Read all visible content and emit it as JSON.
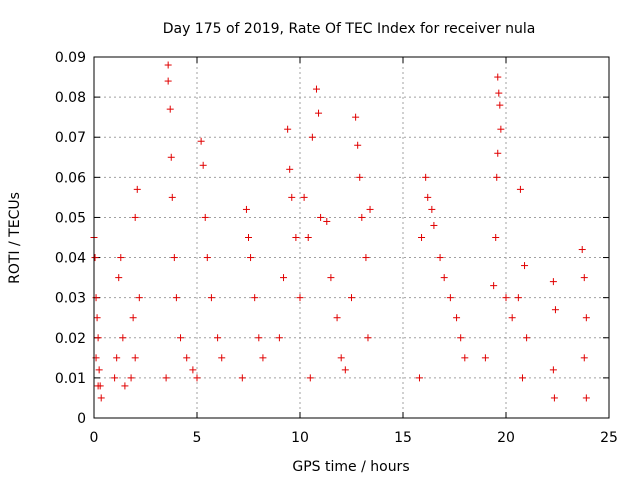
{
  "chart_data": {
    "type": "scatter",
    "title": "Day 175 of 2019, Rate Of TEC Index for receiver nula",
    "xlabel": "GPS time / hours",
    "ylabel": "ROTI / TECUs",
    "xlim": [
      0,
      25
    ],
    "ylim": [
      0,
      0.09
    ],
    "x_ticks": [
      "0",
      "5",
      "10",
      "15",
      "20",
      "25"
    ],
    "y_ticks": [
      "0",
      "0.01",
      "0.02",
      "0.03",
      "0.04",
      "0.05",
      "0.06",
      "0.07",
      "0.08",
      "0.09"
    ],
    "x_tick_values": [
      0,
      5,
      10,
      15,
      20,
      25
    ],
    "y_tick_values": [
      0,
      0.01,
      0.02,
      0.03,
      0.04,
      0.05,
      0.06,
      0.07,
      0.08,
      0.09
    ],
    "grid": true,
    "marker": "+",
    "color": "#e00000",
    "series": [
      {
        "points": [
          [
            0.0,
            0.045
          ],
          [
            0.05,
            0.04
          ],
          [
            0.1,
            0.03
          ],
          [
            0.15,
            0.025
          ],
          [
            0.2,
            0.02
          ],
          [
            0.25,
            0.012
          ],
          [
            0.3,
            0.008
          ],
          [
            0.35,
            0.005
          ],
          [
            0.1,
            0.015
          ],
          [
            0.2,
            0.008
          ],
          [
            1.0,
            0.01
          ],
          [
            1.1,
            0.015
          ],
          [
            1.2,
            0.035
          ],
          [
            1.3,
            0.04
          ],
          [
            1.4,
            0.02
          ],
          [
            1.5,
            0.008
          ],
          [
            1.8,
            0.01
          ],
          [
            1.9,
            0.025
          ],
          [
            2.0,
            0.05
          ],
          [
            2.1,
            0.057
          ],
          [
            2.2,
            0.03
          ],
          [
            2.0,
            0.015
          ],
          [
            3.6,
            0.088
          ],
          [
            3.6,
            0.084
          ],
          [
            3.7,
            0.077
          ],
          [
            3.75,
            0.065
          ],
          [
            3.8,
            0.055
          ],
          [
            3.9,
            0.04
          ],
          [
            4.0,
            0.03
          ],
          [
            4.2,
            0.02
          ],
          [
            4.5,
            0.015
          ],
          [
            3.5,
            0.01
          ],
          [
            4.8,
            0.012
          ],
          [
            5.2,
            0.069
          ],
          [
            5.3,
            0.063
          ],
          [
            5.4,
            0.05
          ],
          [
            5.5,
            0.04
          ],
          [
            5.7,
            0.03
          ],
          [
            6.0,
            0.02
          ],
          [
            5.0,
            0.01
          ],
          [
            6.2,
            0.015
          ],
          [
            7.4,
            0.052
          ],
          [
            7.5,
            0.045
          ],
          [
            7.6,
            0.04
          ],
          [
            7.8,
            0.03
          ],
          [
            8.0,
            0.02
          ],
          [
            7.2,
            0.01
          ],
          [
            8.2,
            0.015
          ],
          [
            9.4,
            0.072
          ],
          [
            9.5,
            0.062
          ],
          [
            9.6,
            0.055
          ],
          [
            9.8,
            0.045
          ],
          [
            9.2,
            0.035
          ],
          [
            9.0,
            0.02
          ],
          [
            10.0,
            0.03
          ],
          [
            10.2,
            0.055
          ],
          [
            10.4,
            0.045
          ],
          [
            10.6,
            0.07
          ],
          [
            10.8,
            0.082
          ],
          [
            10.9,
            0.076
          ],
          [
            11.0,
            0.05
          ],
          [
            11.3,
            0.049
          ],
          [
            11.5,
            0.035
          ],
          [
            11.8,
            0.025
          ],
          [
            12.0,
            0.015
          ],
          [
            10.5,
            0.01
          ],
          [
            12.7,
            0.075
          ],
          [
            12.8,
            0.068
          ],
          [
            12.9,
            0.06
          ],
          [
            13.0,
            0.05
          ],
          [
            13.2,
            0.04
          ],
          [
            12.5,
            0.03
          ],
          [
            13.4,
            0.052
          ],
          [
            13.3,
            0.02
          ],
          [
            12.2,
            0.012
          ],
          [
            15.9,
            0.045
          ],
          [
            16.1,
            0.06
          ],
          [
            16.2,
            0.055
          ],
          [
            16.4,
            0.052
          ],
          [
            16.5,
            0.048
          ],
          [
            16.8,
            0.04
          ],
          [
            17.0,
            0.035
          ],
          [
            17.3,
            0.03
          ],
          [
            17.6,
            0.025
          ],
          [
            18.0,
            0.015
          ],
          [
            15.8,
            0.01
          ],
          [
            17.8,
            0.02
          ],
          [
            19.4,
            0.033
          ],
          [
            19.6,
            0.085
          ],
          [
            19.65,
            0.081
          ],
          [
            19.7,
            0.078
          ],
          [
            19.75,
            0.072
          ],
          [
            19.6,
            0.066
          ],
          [
            19.55,
            0.06
          ],
          [
            19.5,
            0.045
          ],
          [
            20.0,
            0.03
          ],
          [
            20.3,
            0.025
          ],
          [
            20.6,
            0.03
          ],
          [
            20.7,
            0.057
          ],
          [
            19.0,
            0.015
          ],
          [
            20.9,
            0.038
          ],
          [
            21.0,
            0.02
          ],
          [
            20.8,
            0.01
          ],
          [
            22.3,
            0.034
          ],
          [
            22.4,
            0.027
          ],
          [
            22.3,
            0.012
          ],
          [
            22.35,
            0.005
          ],
          [
            23.7,
            0.042
          ],
          [
            23.8,
            0.035
          ],
          [
            23.9,
            0.025
          ],
          [
            23.8,
            0.015
          ],
          [
            23.9,
            0.005
          ]
        ]
      }
    ]
  }
}
